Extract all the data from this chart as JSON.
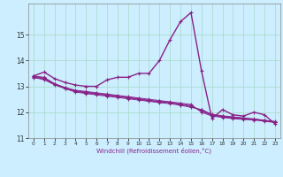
{
  "xlabel": "Windchill (Refroidissement éolien,°C)",
  "background_color": "#cceeff",
  "grid_color": "#aaddcc",
  "line_color": "#882288",
  "xlim": [
    -0.5,
    23.5
  ],
  "ylim": [
    11,
    16.2
  ],
  "xticks": [
    0,
    1,
    2,
    3,
    4,
    5,
    6,
    7,
    8,
    9,
    10,
    11,
    12,
    13,
    14,
    15,
    16,
    17,
    18,
    19,
    20,
    21,
    22,
    23
  ],
  "yticks": [
    11,
    12,
    13,
    14,
    15
  ],
  "lines": [
    {
      "x": [
        0,
        1,
        2,
        3,
        4,
        5,
        6,
        7,
        8,
        9,
        10,
        11,
        12,
        13,
        14,
        15,
        16,
        17,
        18,
        19,
        20,
        21,
        22,
        23
      ],
      "y": [
        13.4,
        13.55,
        13.3,
        13.15,
        13.05,
        13.0,
        13.0,
        13.25,
        13.35,
        13.35,
        13.5,
        13.5,
        14.0,
        14.8,
        15.5,
        15.85,
        13.6,
        11.75,
        12.1,
        11.9,
        11.85,
        12.0,
        11.9,
        11.55
      ]
    },
    {
      "x": [
        0,
        1,
        2,
        3,
        4,
        5,
        6,
        7,
        8,
        9,
        10,
        11,
        12,
        13,
        14,
        15,
        16,
        17,
        18,
        19,
        20,
        21,
        22,
        23
      ],
      "y": [
        13.4,
        13.35,
        13.1,
        12.95,
        12.85,
        12.8,
        12.75,
        12.7,
        12.65,
        12.6,
        12.55,
        12.5,
        12.45,
        12.4,
        12.35,
        12.3,
        12.0,
        11.85,
        11.8,
        11.75,
        11.72,
        11.7,
        11.65,
        11.6
      ]
    },
    {
      "x": [
        0,
        1,
        2,
        3,
        4,
        5,
        6,
        7,
        8,
        9,
        10,
        11,
        12,
        13,
        14,
        15,
        16,
        17,
        18,
        19,
        20,
        21,
        22,
        23
      ],
      "y": [
        13.38,
        13.32,
        13.1,
        12.95,
        12.82,
        12.78,
        12.72,
        12.68,
        12.62,
        12.58,
        12.52,
        12.46,
        12.42,
        12.38,
        12.32,
        12.25,
        12.05,
        11.88,
        11.82,
        11.78,
        11.74,
        11.72,
        11.67,
        11.62
      ]
    },
    {
      "x": [
        0,
        1,
        2,
        3,
        4,
        5,
        6,
        7,
        8,
        9,
        10,
        11,
        12,
        13,
        14,
        15,
        16,
        17,
        18,
        19,
        20,
        21,
        22,
        23
      ],
      "y": [
        13.36,
        13.29,
        13.08,
        12.93,
        12.8,
        12.75,
        12.7,
        12.65,
        12.6,
        12.55,
        12.5,
        12.44,
        12.4,
        12.36,
        12.3,
        12.22,
        12.08,
        11.9,
        11.84,
        11.8,
        11.76,
        11.73,
        11.68,
        11.63
      ]
    },
    {
      "x": [
        0,
        1,
        2,
        3,
        4,
        5,
        6,
        7,
        8,
        9,
        10,
        11,
        12,
        13,
        14,
        15,
        16,
        17,
        18,
        19,
        20,
        21,
        22,
        23
      ],
      "y": [
        13.34,
        13.26,
        13.06,
        12.91,
        12.78,
        12.72,
        12.67,
        12.62,
        12.57,
        12.52,
        12.47,
        12.42,
        12.37,
        12.33,
        12.27,
        12.19,
        12.1,
        11.92,
        11.86,
        11.82,
        11.78,
        11.74,
        11.69,
        11.64
      ]
    }
  ]
}
